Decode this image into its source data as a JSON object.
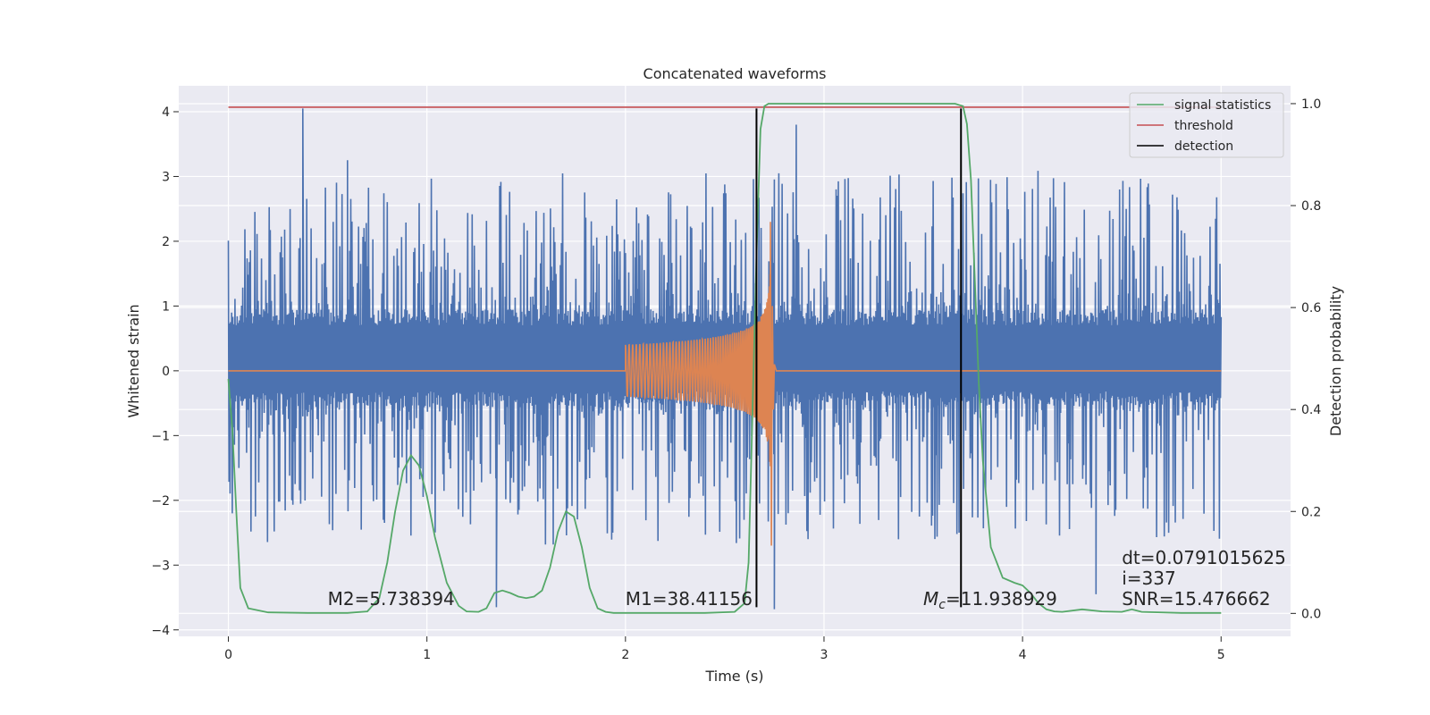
{
  "chart_data": {
    "type": "line",
    "title": "Concatenated waveforms",
    "xlabel": "Time (s)",
    "ylabel": "Whitened strain",
    "ylabel_right": "Detection probability",
    "xlim": [
      -0.25,
      5.35
    ],
    "ylim": [
      -4.1,
      4.4
    ],
    "ylim_right": [
      -0.045,
      1.035
    ],
    "x_ticks": [
      0,
      1,
      2,
      3,
      4,
      5
    ],
    "x_tick_labels": [
      "0",
      "1",
      "2",
      "3",
      "4",
      "5"
    ],
    "y_ticks": [
      4,
      3,
      2,
      1,
      0,
      -1,
      -2,
      -3,
      -4
    ],
    "y_tick_labels": [
      "4",
      "3",
      "2",
      "1",
      "0",
      "−1",
      "−2",
      "−3",
      "−4"
    ],
    "y_right_ticks": [
      1.0,
      0.8,
      0.6,
      0.4,
      0.2,
      0.0
    ],
    "y_right_tick_labels": [
      "1.0",
      "0.8",
      "0.6",
      "0.4",
      "0.2",
      "0.0"
    ],
    "grid": true,
    "legend_position": "top-right",
    "legend": [
      {
        "label": "signal statistics",
        "color": "#55a868"
      },
      {
        "label": "threshold",
        "color": "#c44e52"
      },
      {
        "label": "detection",
        "color": "#000000"
      }
    ],
    "colors": {
      "background": "#eaeaf2",
      "grid": "#ffffff",
      "noise": "#4c72b0",
      "template": "#dd8452",
      "signal_statistics": "#55a868",
      "threshold": "#c44e52",
      "detection": "#000000"
    },
    "noise_strain": {
      "x_range": [
        0,
        5
      ],
      "core_range": [
        -0.57,
        0.95
      ],
      "peak_positive": 4.05,
      "peak_negative": -3.68,
      "notable_spikes": [
        {
          "x": 0.375,
          "y": 4.05
        },
        {
          "x": 0.6,
          "y": 3.25
        },
        {
          "x": 1.35,
          "y": -3.65
        },
        {
          "x": 2.75,
          "y": -3.68
        },
        {
          "x": 2.86,
          "y": 3.8
        },
        {
          "x": 4.37,
          "y": -3.45
        }
      ]
    },
    "template_waveform": {
      "x_range": [
        2.0,
        2.75
      ],
      "baseline": 0,
      "start_amplitude": 0.4,
      "merger_x": 2.73,
      "merger_peak": 2.3,
      "merger_trough": -2.7
    },
    "threshold": {
      "y_right": 0.993,
      "x_range": [
        0,
        5
      ]
    },
    "detections": [
      {
        "x": 2.66,
        "y_range": [
          -3.65,
          4.05
        ]
      },
      {
        "x": 3.69,
        "y_range": [
          -3.65,
          4.05
        ]
      }
    ],
    "signal_statistics": {
      "x": [
        0,
        0.02,
        0.04,
        0.06,
        0.1,
        0.2,
        0.4,
        0.6,
        0.7,
        0.76,
        0.8,
        0.84,
        0.88,
        0.92,
        0.96,
        1.0,
        1.04,
        1.1,
        1.16,
        1.2,
        1.26,
        1.3,
        1.34,
        1.38,
        1.42,
        1.46,
        1.5,
        1.54,
        1.58,
        1.62,
        1.66,
        1.7,
        1.74,
        1.78,
        1.82,
        1.86,
        1.9,
        1.94,
        2.0,
        2.2,
        2.4,
        2.55,
        2.6,
        2.62,
        2.64,
        2.66,
        2.68,
        2.7,
        2.72,
        2.74,
        2.8,
        3.0,
        3.2,
        3.4,
        3.6,
        3.66,
        3.7,
        3.72,
        3.74,
        3.76,
        3.78,
        3.8,
        3.84,
        3.9,
        3.96,
        4.0,
        4.04,
        4.08,
        4.12,
        4.16,
        4.2,
        4.3,
        4.4,
        4.5,
        4.55,
        4.6,
        4.8,
        5.0
      ],
      "y": [
        0.46,
        0.36,
        0.2,
        0.05,
        0.01,
        0.002,
        0.001,
        0.001,
        0.004,
        0.03,
        0.1,
        0.2,
        0.28,
        0.31,
        0.29,
        0.23,
        0.15,
        0.06,
        0.015,
        0.004,
        0.003,
        0.01,
        0.04,
        0.045,
        0.04,
        0.033,
        0.03,
        0.033,
        0.045,
        0.09,
        0.16,
        0.2,
        0.19,
        0.13,
        0.05,
        0.01,
        0.003,
        0.001,
        0.001,
        0.001,
        0.001,
        0.003,
        0.02,
        0.1,
        0.4,
        0.7,
        0.95,
        0.995,
        1.0,
        1.0,
        1.0,
        1.0,
        1.0,
        1.0,
        1.0,
        1.0,
        0.995,
        0.96,
        0.85,
        0.65,
        0.45,
        0.3,
        0.13,
        0.07,
        0.06,
        0.055,
        0.04,
        0.02,
        0.008,
        0.004,
        0.003,
        0.008,
        0.004,
        0.003,
        0.008,
        0.003,
        0.001,
        0.001
      ]
    },
    "annotations": [
      {
        "x": 0.5,
        "y": -3.62,
        "text": "M2=5.738394"
      },
      {
        "x": 2.0,
        "y": -3.62,
        "text": "M1=38.41156"
      },
      {
        "x": 3.5,
        "y": -3.62,
        "main": "M",
        "sub": "c",
        "rest": "=11.938929"
      },
      {
        "x": 4.5,
        "y": -3.62,
        "text": "SNR=15.476662"
      },
      {
        "x": 4.5,
        "y": -2.98,
        "text": "dt=0.0791015625"
      },
      {
        "x": 4.5,
        "y": -3.3,
        "text": " i=337"
      }
    ]
  }
}
